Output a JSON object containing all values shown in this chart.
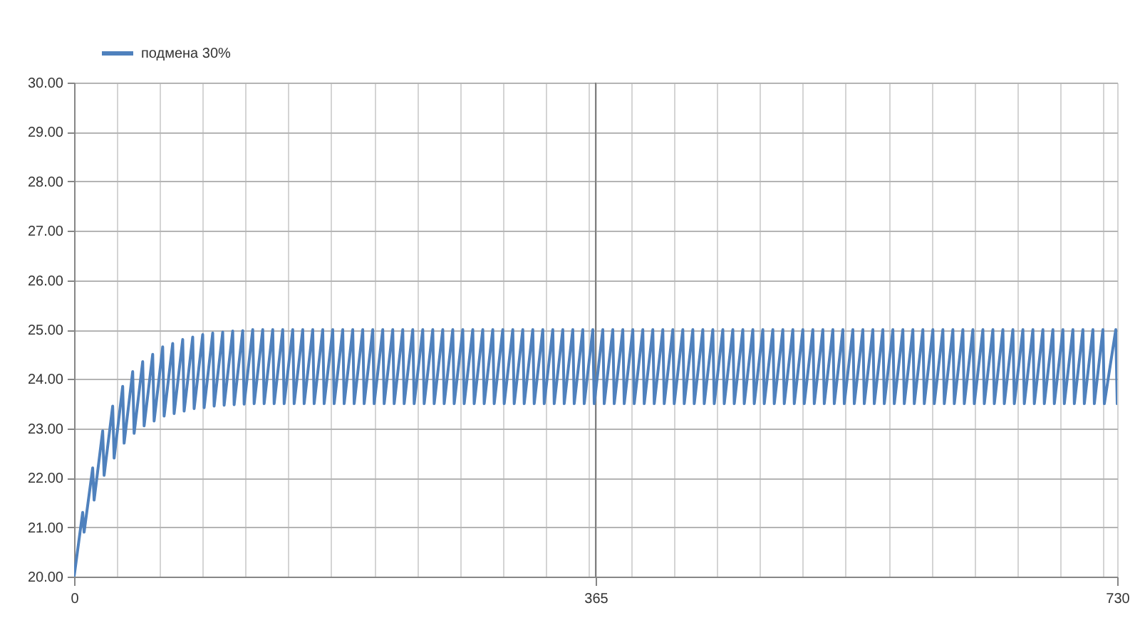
{
  "chart_data": {
    "type": "line",
    "x": [
      0,
      6,
      7,
      13,
      14,
      20,
      21,
      27,
      28,
      34,
      35,
      41,
      42,
      48,
      49,
      55,
      56,
      62,
      63,
      69,
      70,
      76,
      77,
      83,
      84,
      90,
      91,
      97,
      98,
      104,
      105,
      111,
      112,
      118,
      119,
      125,
      126,
      132,
      133,
      139,
      140,
      146,
      147,
      153,
      154,
      160,
      161,
      167,
      168,
      174,
      175,
      181,
      182,
      188,
      189,
      195,
      196,
      202,
      203,
      209,
      210,
      216,
      217,
      223,
      224,
      230,
      231,
      237,
      238,
      244,
      245,
      251,
      252,
      258,
      259,
      265,
      266,
      272,
      273,
      279,
      280,
      286,
      287,
      293,
      294,
      300,
      301,
      307,
      308,
      314,
      315,
      321,
      322,
      328,
      329,
      335,
      336,
      342,
      343,
      349,
      350,
      356,
      357,
      363,
      364,
      370,
      371,
      377,
      378,
      384,
      385,
      391,
      392,
      398,
      399,
      405,
      406,
      412,
      413,
      419,
      420,
      426,
      427,
      433,
      434,
      440,
      441,
      447,
      448,
      454,
      455,
      461,
      462,
      468,
      469,
      475,
      476,
      482,
      483,
      489,
      490,
      496,
      497,
      503,
      504,
      510,
      511,
      517,
      518,
      524,
      525,
      531,
      532,
      538,
      539,
      545,
      546,
      552,
      553,
      559,
      560,
      566,
      567,
      573,
      574,
      580,
      581,
      587,
      588,
      594,
      595,
      601,
      602,
      608,
      609,
      615,
      616,
      622,
      623,
      629,
      630,
      636,
      637,
      643,
      644,
      650,
      651,
      657,
      658,
      664,
      665,
      671,
      672,
      678,
      679,
      685,
      686,
      692,
      693,
      699,
      700,
      706,
      707,
      713,
      714,
      720,
      721,
      729,
      730
    ],
    "series": [
      {
        "name": "подмена 30%",
        "color": "#4f81bd",
        "values": [
          20,
          21.3,
          20.9,
          22.2,
          21.55,
          22.95,
          22.05,
          23.45,
          22.4,
          23.85,
          22.7,
          24.15,
          22.9,
          24.35,
          23.05,
          24.5,
          23.15,
          24.65,
          23.25,
          24.72,
          23.3,
          24.8,
          23.35,
          24.85,
          23.4,
          24.9,
          23.42,
          24.93,
          23.45,
          24.95,
          23.47,
          24.97,
          23.48,
          24.98,
          23.49,
          25,
          23.5,
          25,
          23.5,
          25,
          23.5,
          25,
          23.5,
          25,
          23.5,
          25,
          23.5,
          25,
          23.5,
          25,
          23.5,
          25,
          23.5,
          25,
          23.5,
          25,
          23.5,
          25,
          23.5,
          25,
          23.5,
          25,
          23.5,
          25,
          23.5,
          25,
          23.5,
          25,
          23.5,
          25,
          23.5,
          25,
          23.5,
          25,
          23.5,
          25,
          23.5,
          25,
          23.5,
          25,
          23.5,
          25,
          23.5,
          25,
          23.5,
          25,
          23.5,
          25,
          23.5,
          25,
          23.5,
          25,
          23.5,
          25,
          23.5,
          25,
          23.5,
          25,
          23.5,
          25,
          23.5,
          25,
          23.5,
          25,
          23.5,
          25,
          23.5,
          25,
          23.5,
          25,
          23.5,
          25,
          23.5,
          25,
          23.5,
          25,
          23.5,
          25,
          23.5,
          25,
          23.5,
          25,
          23.5,
          25,
          23.5,
          25,
          23.5,
          25,
          23.5,
          25,
          23.5,
          25,
          23.5,
          25,
          23.5,
          25,
          23.5,
          25,
          23.5,
          25,
          23.5,
          25,
          23.5,
          25,
          23.5,
          25,
          23.5,
          25,
          23.5,
          25,
          23.5,
          25,
          23.5,
          25,
          23.5,
          25,
          23.5,
          25,
          23.5,
          25,
          23.5,
          25,
          23.5,
          25,
          23.5,
          25,
          23.5,
          25,
          23.5,
          25,
          23.5,
          25,
          23.5,
          25,
          23.5,
          25,
          23.5,
          25,
          23.5,
          25,
          23.5,
          25,
          23.5,
          25,
          23.5,
          25,
          23.5,
          25,
          23.5,
          25,
          23.5,
          25,
          23.5,
          25,
          23.5,
          25,
          23.5,
          25,
          23.5,
          25,
          23.5,
          25,
          23.5,
          25,
          23.5,
          25,
          23.5,
          25,
          23.5
        ]
      }
    ],
    "xlim": [
      0,
      730
    ],
    "xticks": [
      0,
      {
        "value": 30,
        "label": null
      },
      {
        "value": 60,
        "label": null
      },
      {
        "value": 90,
        "label": null
      },
      {
        "value": 120,
        "label": null
      },
      {
        "value": 150,
        "label": null
      },
      {
        "value": 180,
        "label": null
      },
      {
        "value": 210,
        "label": null
      },
      {
        "value": 240,
        "label": null
      },
      {
        "value": 270,
        "label": null
      },
      {
        "value": 300,
        "label": null
      },
      {
        "value": 330,
        "label": null
      },
      {
        "value": 360,
        "label": null
      },
      365,
      {
        "value": 390,
        "label": null
      },
      {
        "value": 420,
        "label": null
      },
      {
        "value": 450,
        "label": null
      },
      {
        "value": 480,
        "label": null
      },
      {
        "value": 510,
        "label": null
      },
      {
        "value": 540,
        "label": null
      },
      {
        "value": 570,
        "label": null
      },
      {
        "value": 600,
        "label": null
      },
      {
        "value": 630,
        "label": null
      },
      {
        "value": 660,
        "label": null
      },
      {
        "value": 690,
        "label": null
      },
      {
        "value": 720,
        "label": null
      },
      730
    ],
    "ylim": [
      20,
      30
    ],
    "yticks": [
      {
        "value": 20,
        "label": "20.00"
      },
      {
        "value": 21,
        "label": "21.00"
      },
      {
        "value": 22,
        "label": "22.00"
      },
      {
        "value": 23,
        "label": "23.00"
      },
      {
        "value": 24,
        "label": "24.00"
      },
      {
        "value": 25,
        "label": "25.00"
      },
      {
        "value": 26,
        "label": "26.00"
      },
      {
        "value": 27,
        "label": "27.00"
      },
      {
        "value": 28,
        "label": "28.00"
      },
      {
        "value": 29,
        "label": "29.00"
      },
      {
        "value": 30,
        "label": "30.00"
      }
    ],
    "ref_lines": [
      {
        "axis": "x",
        "value": 365,
        "color": "#808080"
      }
    ],
    "grid": true,
    "legend": "top left"
  }
}
